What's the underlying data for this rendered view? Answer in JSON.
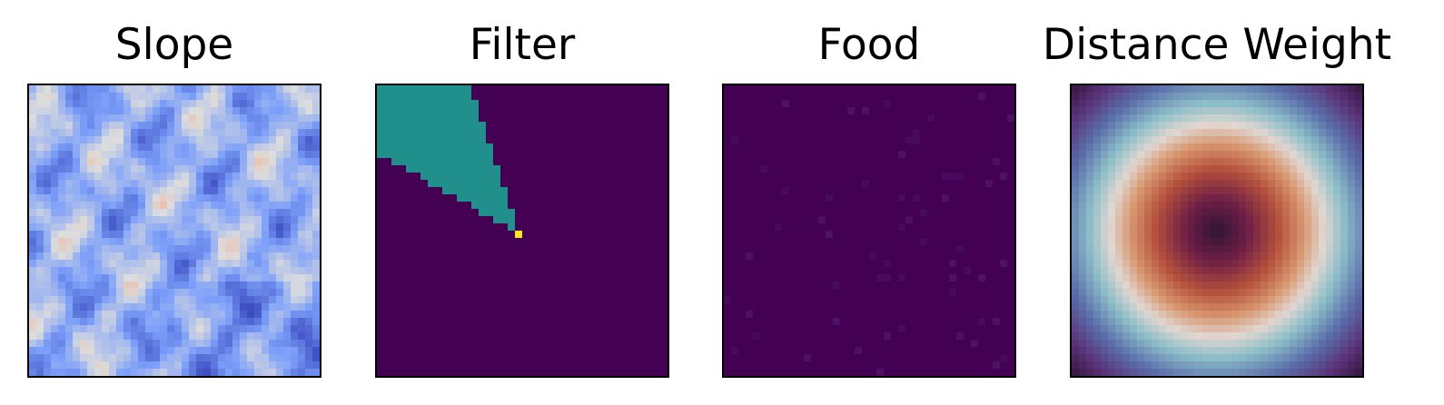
{
  "chart_data": [
    {
      "type": "heatmap",
      "title": "Slope",
      "colormap": "coolwarm",
      "grid_size": [
        40,
        40
      ],
      "xticks": [],
      "yticks": [],
      "value_range": [
        0,
        1
      ],
      "description_of_values": "irregular terrain-slope field, mostly low-to-mid values (blue to light blue) with a few warmer patches"
    },
    {
      "type": "heatmap",
      "title": "Filter",
      "colormap": "viridis",
      "grid_size": [
        40,
        40
      ],
      "xticks": [],
      "yticks": [],
      "value_range": [
        0,
        2
      ],
      "agent_cell": [
        20,
        19
      ],
      "agent_value": 2,
      "cone_value": 1,
      "background_value": 0,
      "cone_direction": "upper-left",
      "colors": {
        "background": "#440154",
        "cone": "#21908d",
        "agent": "#fde725"
      }
    },
    {
      "type": "heatmap",
      "title": "Food",
      "colormap": "viridis",
      "grid_size": [
        40,
        40
      ],
      "xticks": [],
      "yticks": [],
      "value_range": [
        0,
        1
      ],
      "description_of_values": "nearly all cells at minimum, a sparse scattering of slightly elevated cells",
      "colors": {
        "background": "#440154"
      }
    },
    {
      "type": "heatmap",
      "title": "Distance Weight",
      "colormap": "twilight_shifted",
      "grid_size": [
        40,
        40
      ],
      "xticks": [],
      "yticks": [],
      "center_cell": [
        20,
        20
      ],
      "description_of_values": "radially symmetric weight: dark at center, orange/red ring, pale ring near radius 13 cells, teal/blue then purple toward the corners"
    }
  ]
}
